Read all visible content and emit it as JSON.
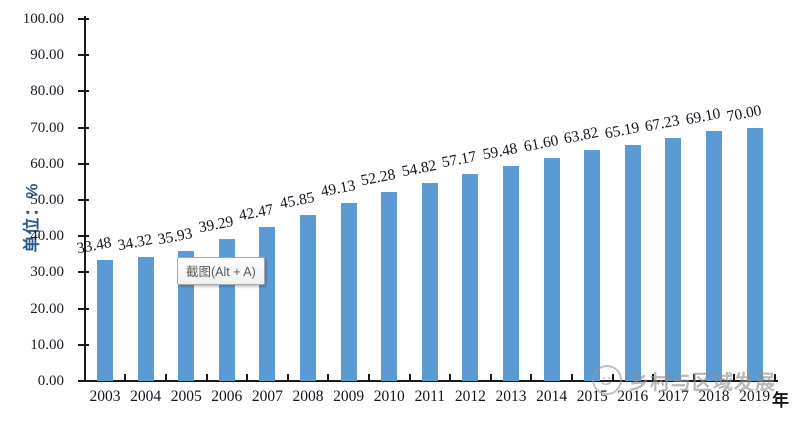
{
  "chart_data": {
    "type": "bar",
    "title": "",
    "categories": [
      "2003",
      "2004",
      "2005",
      "2006",
      "2007",
      "2008",
      "2009",
      "2010",
      "2011",
      "2012",
      "2013",
      "2014",
      "2015",
      "2016",
      "2017",
      "2018",
      "2019"
    ],
    "values": [
      33.48,
      34.32,
      35.93,
      39.29,
      42.47,
      45.85,
      49.13,
      52.28,
      54.82,
      57.17,
      59.48,
      61.6,
      63.82,
      65.19,
      67.23,
      69.1,
      70.0
    ],
    "value_labels": [
      "33.48",
      "34.32",
      "35.93",
      "39.29",
      "42.47",
      "45.85",
      "49.13",
      "52.28",
      "54.82",
      "57.17",
      "59.48",
      "61.60",
      "63.82",
      "65.19",
      "67.23",
      "69.10",
      "70.00"
    ],
    "ylabel": "单位：%",
    "xlabel": "年",
    "ylim": [
      0,
      100
    ],
    "ytick_step": 10,
    "yticks": [
      "100.00",
      "90.00",
      "80.00",
      "70.00",
      "60.00",
      "50.00",
      "40.00",
      "30.00",
      "20.00",
      "10.00",
      "0.00"
    ],
    "bar_color": "#5B9BD5",
    "grid": false,
    "legend": null
  },
  "overlay": {
    "tooltip": {
      "label": "截图(Alt + A)"
    },
    "watermark": {
      "text": "乡村与区域发展",
      "logo": "circle-figure-logo-icon"
    }
  }
}
